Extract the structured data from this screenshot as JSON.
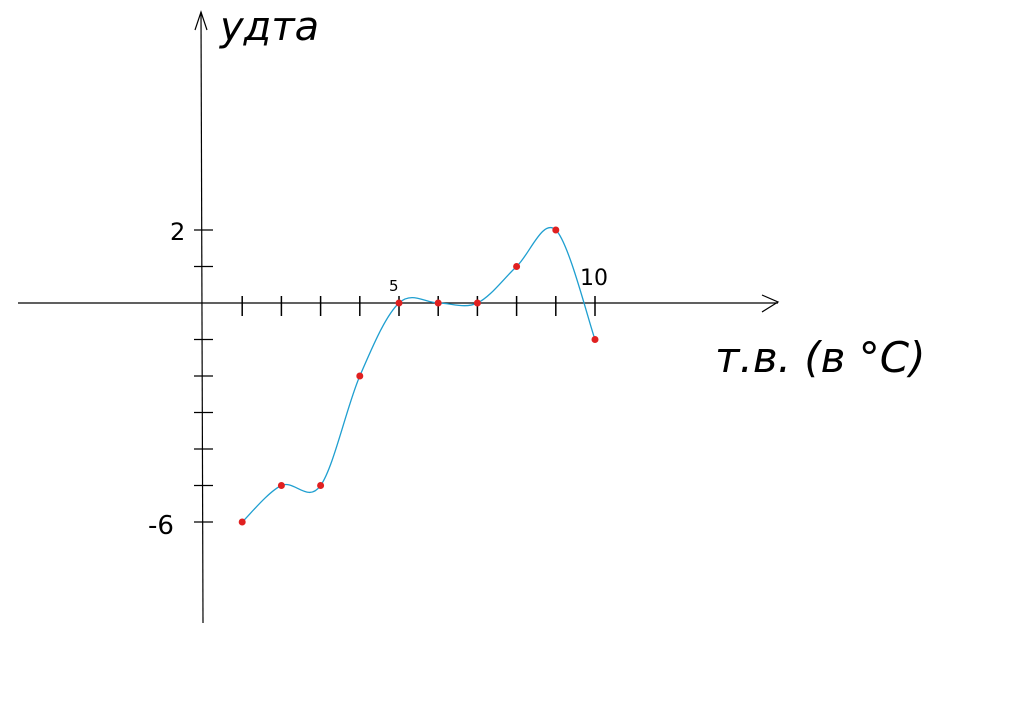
{
  "chart_data": {
    "type": "line",
    "title": "",
    "xlabel": "т.в. (в °C)",
    "ylabel": "удта",
    "x_tick_labels": [
      "5",
      "10"
    ],
    "y_tick_labels": [
      "2",
      "-6"
    ],
    "xlim": [
      -4.7,
      14.7
    ],
    "ylim": [
      -8.7,
      8.2
    ],
    "x_ticks": [
      1,
      2,
      3,
      4,
      5,
      6,
      7,
      8,
      9,
      10
    ],
    "y_ticks": [
      -6,
      -5,
      -4,
      -3,
      -2,
      -1,
      1,
      2
    ],
    "series": [
      {
        "x": [
          1,
          2,
          3,
          4,
          5,
          6,
          7,
          8,
          9,
          10
        ],
        "y": [
          -6,
          -5,
          -5,
          -2,
          0,
          0,
          0,
          1,
          2,
          -1
        ]
      }
    ],
    "grid": false,
    "colors": {
      "line": "#1f9fd0",
      "points": "#e02020",
      "axes": "#000000"
    }
  }
}
